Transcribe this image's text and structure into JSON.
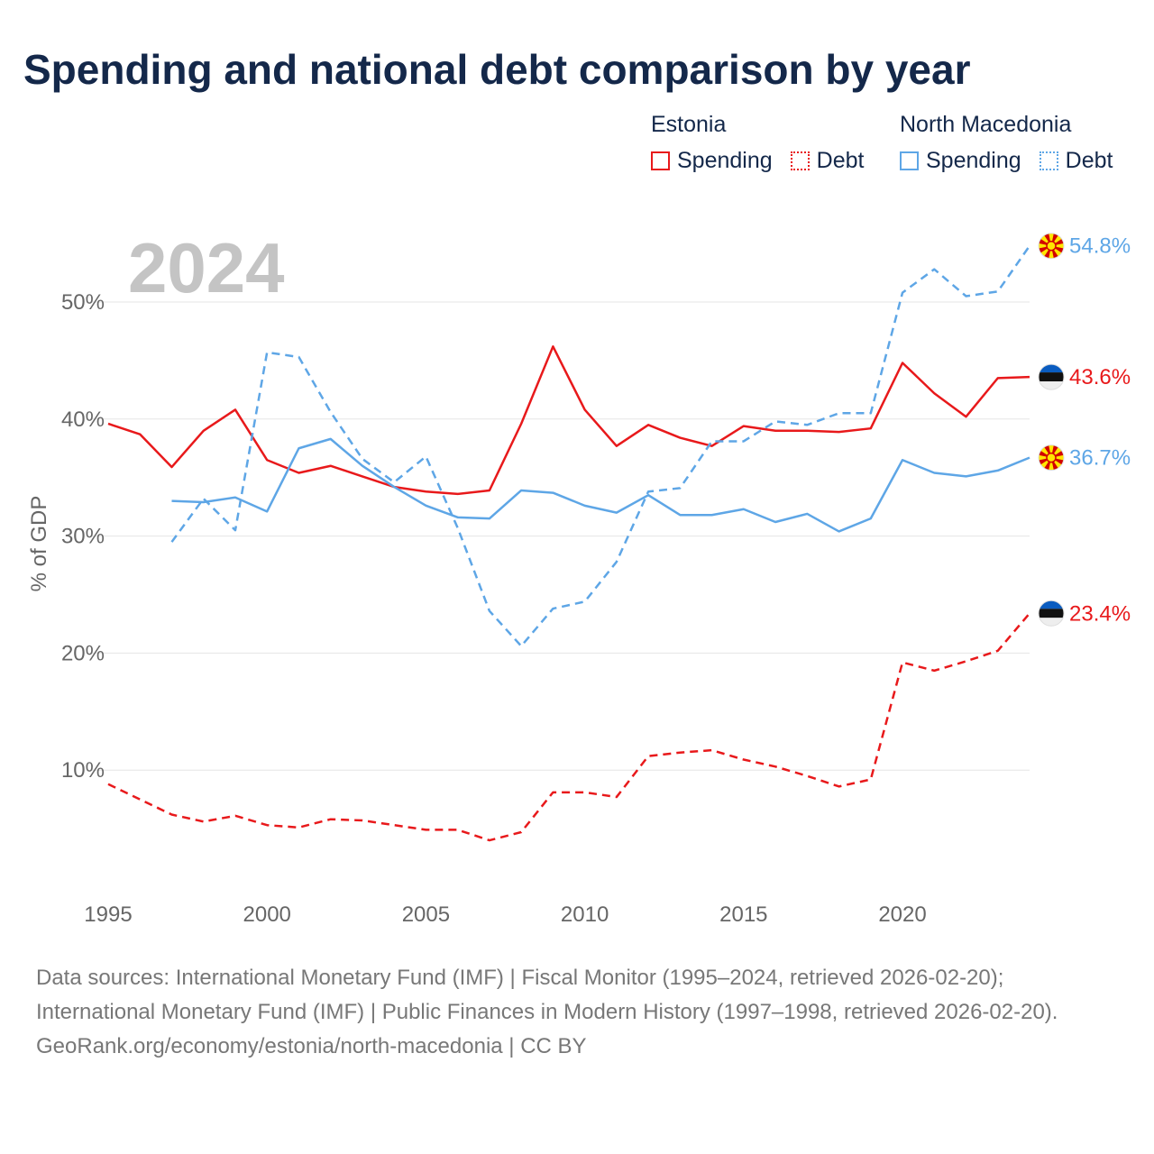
{
  "title": "Spending and national debt comparison by year",
  "legend": {
    "estonia": {
      "title": "Estonia",
      "spending": "Spending",
      "debt": "Debt",
      "color": "#e8191b"
    },
    "north_macedonia": {
      "title": "North Macedonia",
      "spending": "Spending",
      "debt": "Debt",
      "color": "#5ea6e6"
    }
  },
  "footer": {
    "sources": "Data sources: International Monetary Fund (IMF) | Fiscal Monitor (1995–2024, retrieved 2026-02-20); International Monetary Fund (IMF) | Public Finances in Modern History (1997–1998, retrieved 2026-02-20).",
    "site": "GeoRank.org/economy/estonia/north-macedonia | CC BY"
  },
  "chart_data": {
    "type": "line",
    "title": "Spending and national debt comparison by year",
    "xlabel": "",
    "ylabel": "% of GDP",
    "year_label": "2024",
    "xlim": [
      1995,
      2024
    ],
    "ylim": [
      0,
      57
    ],
    "x_ticks": [
      1995,
      2000,
      2005,
      2010,
      2015,
      2020
    ],
    "y_ticks": [
      10,
      20,
      30,
      40,
      50
    ],
    "y_tick_labels": [
      "10%",
      "20%",
      "30%",
      "40%",
      "50%"
    ],
    "grid": true,
    "legend_position": "top-right",
    "series": [
      {
        "name": "Estonia Spending",
        "country": "Estonia",
        "metric": "Spending",
        "color": "#e8191b",
        "dashed": false,
        "end_label": "43.6%",
        "x": [
          1995,
          1996,
          1997,
          1998,
          1999,
          2000,
          2001,
          2002,
          2003,
          2004,
          2005,
          2006,
          2007,
          2008,
          2009,
          2010,
          2011,
          2012,
          2013,
          2014,
          2015,
          2016,
          2017,
          2018,
          2019,
          2020,
          2021,
          2022,
          2023,
          2024
        ],
        "values": [
          39.6,
          38.7,
          35.9,
          39.0,
          40.8,
          36.5,
          35.4,
          36.0,
          35.1,
          34.2,
          33.8,
          33.6,
          33.9,
          39.6,
          46.2,
          40.8,
          37.7,
          39.5,
          38.4,
          37.7,
          39.4,
          39.0,
          39.0,
          38.9,
          39.2,
          44.8,
          42.2,
          40.2,
          43.5,
          43.6
        ]
      },
      {
        "name": "Estonia Debt",
        "country": "Estonia",
        "metric": "Debt",
        "color": "#e8191b",
        "dashed": true,
        "end_label": "23.4%",
        "x": [
          1995,
          1996,
          1997,
          1998,
          1999,
          2000,
          2001,
          2002,
          2003,
          2004,
          2005,
          2006,
          2007,
          2008,
          2009,
          2010,
          2011,
          2012,
          2013,
          2014,
          2015,
          2016,
          2017,
          2018,
          2019,
          2020,
          2021,
          2022,
          2023,
          2024
        ],
        "values": [
          8.8,
          7.5,
          6.2,
          5.6,
          6.1,
          5.3,
          5.1,
          5.8,
          5.7,
          5.3,
          4.9,
          4.9,
          4.0,
          4.7,
          8.1,
          8.1,
          7.7,
          11.2,
          11.5,
          11.7,
          10.9,
          10.3,
          9.5,
          8.6,
          9.2,
          19.2,
          18.5,
          19.3,
          20.2,
          23.4
        ]
      },
      {
        "name": "North Macedonia Spending",
        "country": "North Macedonia",
        "metric": "Spending",
        "color": "#5ea6e6",
        "dashed": false,
        "end_label": "36.7%",
        "x": [
          1997,
          1998,
          1999,
          2000,
          2001,
          2002,
          2003,
          2004,
          2005,
          2006,
          2007,
          2008,
          2009,
          2010,
          2011,
          2012,
          2013,
          2014,
          2015,
          2016,
          2017,
          2018,
          2019,
          2020,
          2021,
          2022,
          2023,
          2024
        ],
        "values": [
          33.0,
          32.9,
          33.3,
          32.1,
          37.5,
          38.3,
          36.0,
          34.2,
          32.6,
          31.6,
          31.5,
          33.9,
          33.7,
          32.6,
          32.0,
          33.5,
          31.8,
          31.8,
          32.3,
          31.2,
          31.9,
          30.4,
          31.5,
          36.5,
          35.4,
          35.1,
          35.6,
          36.7
        ]
      },
      {
        "name": "North Macedonia Debt",
        "country": "North Macedonia",
        "metric": "Debt",
        "color": "#5ea6e6",
        "dashed": true,
        "end_label": "54.8%",
        "x": [
          1997,
          1998,
          1999,
          2000,
          2001,
          2002,
          2003,
          2004,
          2005,
          2006,
          2007,
          2008,
          2009,
          2010,
          2011,
          2012,
          2013,
          2014,
          2015,
          2016,
          2017,
          2018,
          2019,
          2020,
          2021,
          2022,
          2023,
          2024
        ],
        "values": [
          29.5,
          33.2,
          30.5,
          45.7,
          45.3,
          40.6,
          36.6,
          34.6,
          36.8,
          30.7,
          23.6,
          20.6,
          23.8,
          24.4,
          27.8,
          33.8,
          34.1,
          38.1,
          38.1,
          39.8,
          39.5,
          40.5,
          40.5,
          50.8,
          52.8,
          50.5,
          50.9,
          54.8
        ]
      }
    ]
  }
}
